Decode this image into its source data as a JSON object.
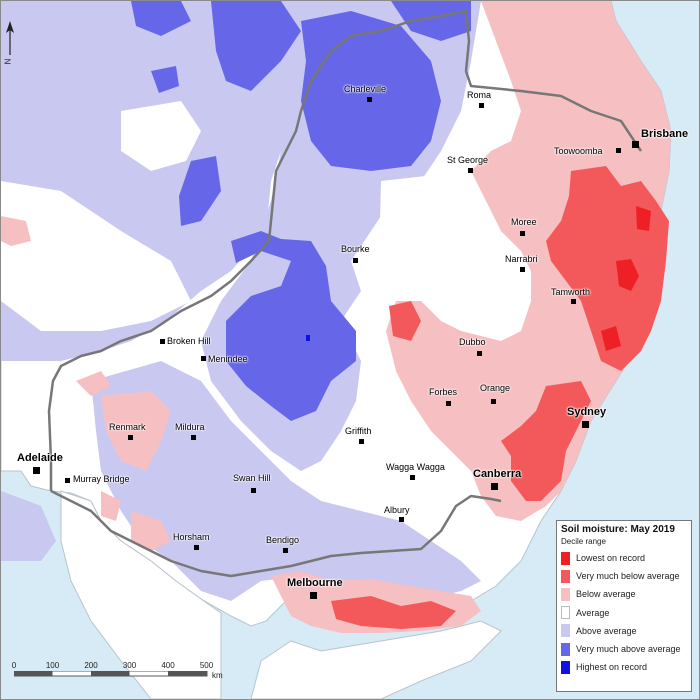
{
  "legend": {
    "title": "Soil moisture: May 2019",
    "subtitle": "Decile range",
    "items": [
      {
        "label": "Lowest on record",
        "color": "#ee1f25"
      },
      {
        "label": "Very much below average",
        "color": "#f3595a"
      },
      {
        "label": "Below average",
        "color": "#f6c0c3"
      },
      {
        "label": "Average",
        "color": "#ffffff"
      },
      {
        "label": "Above average",
        "color": "#c8c8f0"
      },
      {
        "label": "Very much above average",
        "color": "#6666e8"
      },
      {
        "label": "Highest on record",
        "color": "#1010e0"
      }
    ]
  },
  "north_arrow": {
    "label": "N"
  },
  "scale_bar": {
    "ticks": [
      "0",
      "100",
      "200",
      "300",
      "400",
      "500"
    ],
    "unit": "km"
  },
  "towns": [
    {
      "name": "Charleville",
      "type": "town"
    },
    {
      "name": "Roma",
      "type": "town"
    },
    {
      "name": "Brisbane",
      "type": "capital"
    },
    {
      "name": "Toowoomba",
      "type": "town"
    },
    {
      "name": "St George",
      "type": "town"
    },
    {
      "name": "Moree",
      "type": "town"
    },
    {
      "name": "Bourke",
      "type": "town"
    },
    {
      "name": "Narrabri",
      "type": "town"
    },
    {
      "name": "Tamworth",
      "type": "town"
    },
    {
      "name": "Broken Hill",
      "type": "town"
    },
    {
      "name": "Menindee",
      "type": "town"
    },
    {
      "name": "Dubbo",
      "type": "town"
    },
    {
      "name": "Orange",
      "type": "town"
    },
    {
      "name": "Forbes",
      "type": "town"
    },
    {
      "name": "Sydney",
      "type": "capital"
    },
    {
      "name": "Renmark",
      "type": "town"
    },
    {
      "name": "Mildura",
      "type": "town"
    },
    {
      "name": "Griffith",
      "type": "town"
    },
    {
      "name": "Adelaide",
      "type": "capital"
    },
    {
      "name": "Murray Bridge",
      "type": "town"
    },
    {
      "name": "Wagga Wagga",
      "type": "town"
    },
    {
      "name": "Swan Hill",
      "type": "town"
    },
    {
      "name": "Canberra",
      "type": "capital"
    },
    {
      "name": "Albury",
      "type": "town"
    },
    {
      "name": "Horsham",
      "type": "town"
    },
    {
      "name": "Bendigo",
      "type": "town"
    },
    {
      "name": "Melbourne",
      "type": "capital"
    }
  ]
}
